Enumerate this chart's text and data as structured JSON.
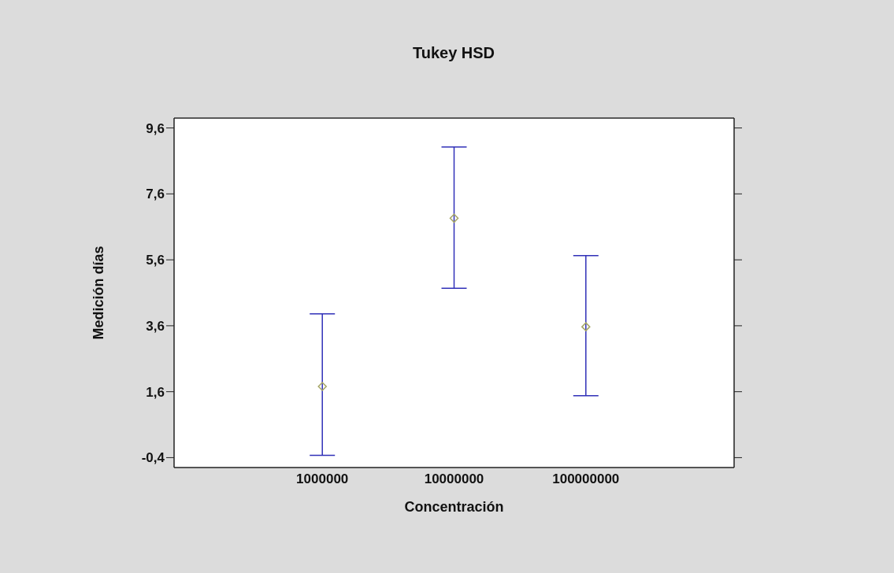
{
  "chart_data": {
    "type": "scatter",
    "title": "Tukey HSD",
    "xlabel": "Concentración",
    "ylabel": "Medición días",
    "categories": [
      "1000000",
      "10000000",
      "100000000"
    ],
    "values": [
      1.76,
      6.86,
      3.57
    ],
    "errors": [
      [
        -0.33,
        3.96
      ],
      [
        4.74,
        9.02
      ],
      [
        1.48,
        5.73
      ]
    ],
    "color": "#a5a566",
    "marker": "diamond",
    "ylim": [
      -0.7,
      9.9
    ],
    "yticks": [
      {
        "value": -0.4,
        "label": "-0,4"
      },
      {
        "value": 1.6,
        "label": "1,6"
      },
      {
        "value": 3.6,
        "label": "3,6"
      },
      {
        "value": 5.6,
        "label": "5,6"
      },
      {
        "value": 7.6,
        "label": "7,6"
      },
      {
        "value": 9.6,
        "label": "9,6"
      }
    ]
  }
}
